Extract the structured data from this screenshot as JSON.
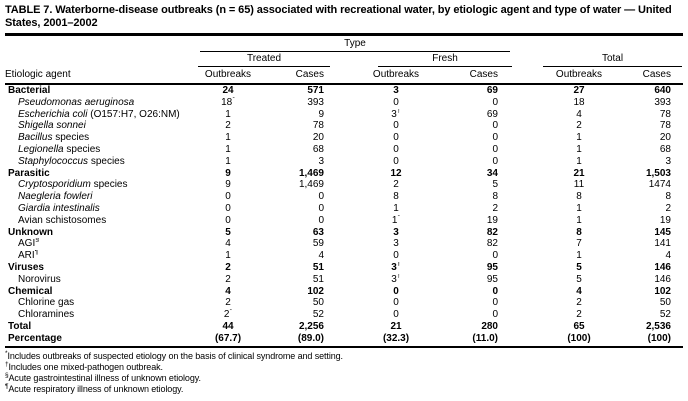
{
  "title": "TABLE 7. Waterborne-disease outbreaks (n = 65) associated with recreational water, by etiologic agent and type of water — United States, 2001–2002",
  "table": {
    "group_header": "Type",
    "subgroups": [
      "Treated",
      "Fresh",
      "Total"
    ],
    "agent_header": "Etiologic agent",
    "col_headers": [
      "Outbreaks",
      "Cases"
    ],
    "rows": [
      {
        "label": [
          {
            "t": "Bacterial"
          }
        ],
        "bold": true,
        "indent": false,
        "cells": [
          "24",
          "571",
          "3",
          "69",
          "27",
          "640"
        ]
      },
      {
        "label": [
          {
            "t": "Pseudomonas aeruginosa",
            "i": true
          }
        ],
        "bold": false,
        "indent": true,
        "cells": [
          "18*",
          "393",
          "0",
          "0",
          "18",
          "393"
        ]
      },
      {
        "label": [
          {
            "t": "Escherichia coli",
            "i": true
          },
          {
            "t": " (O157:H7, O26:NM)"
          }
        ],
        "bold": false,
        "indent": true,
        "cells": [
          "1",
          "9",
          "3†",
          "69",
          "4",
          "78"
        ]
      },
      {
        "label": [
          {
            "t": "Shigella sonnei",
            "i": true
          }
        ],
        "bold": false,
        "indent": true,
        "cells": [
          "2",
          "78",
          "0",
          "0",
          "2",
          "78"
        ]
      },
      {
        "label": [
          {
            "t": "Bacillus",
            "i": true
          },
          {
            "t": " species"
          }
        ],
        "bold": false,
        "indent": true,
        "cells": [
          "1",
          "20",
          "0",
          "0",
          "1",
          "20"
        ]
      },
      {
        "label": [
          {
            "t": "Legionella",
            "i": true
          },
          {
            "t": " species"
          }
        ],
        "bold": false,
        "indent": true,
        "cells": [
          "1",
          "68",
          "0",
          "0",
          "1",
          "68"
        ]
      },
      {
        "label": [
          {
            "t": "Staphylococcus",
            "i": true
          },
          {
            "t": " species"
          }
        ],
        "bold": false,
        "indent": true,
        "cells": [
          "1",
          "3",
          "0",
          "0",
          "1",
          "3"
        ]
      },
      {
        "label": [
          {
            "t": "Parasitic"
          }
        ],
        "bold": true,
        "indent": false,
        "cells": [
          "9",
          "1,469",
          "12",
          "34",
          "21",
          "1,503"
        ]
      },
      {
        "label": [
          {
            "t": "Cryptosporidium",
            "i": true
          },
          {
            "t": " species"
          }
        ],
        "bold": false,
        "indent": true,
        "cells": [
          "9",
          "1,469",
          "2",
          "5",
          "11",
          "1474"
        ]
      },
      {
        "label": [
          {
            "t": "Naegleria fowleri",
            "i": true
          }
        ],
        "bold": false,
        "indent": true,
        "cells": [
          "0",
          "0",
          "8",
          "8",
          "8",
          "8"
        ]
      },
      {
        "label": [
          {
            "t": "Giardia intestinalis",
            "i": true
          }
        ],
        "bold": false,
        "indent": true,
        "cells": [
          "0",
          "0",
          "1",
          "2",
          "1",
          "2"
        ]
      },
      {
        "label": [
          {
            "t": "Avian schistosomes"
          }
        ],
        "bold": false,
        "indent": true,
        "cells": [
          "0",
          "0",
          "1*",
          "19",
          "1",
          "19"
        ]
      },
      {
        "label": [
          {
            "t": "Unknown"
          }
        ],
        "bold": true,
        "indent": false,
        "cells": [
          "5",
          "63",
          "3",
          "82",
          "8",
          "145"
        ]
      },
      {
        "label": [
          {
            "t": "AGI"
          }
        ],
        "sup": "§",
        "bold": false,
        "indent": true,
        "cells": [
          "4",
          "59",
          "3",
          "82",
          "7",
          "141"
        ]
      },
      {
        "label": [
          {
            "t": "ARI"
          }
        ],
        "sup": "¶",
        "bold": false,
        "indent": true,
        "cells": [
          "1",
          "4",
          "0",
          "0",
          "1",
          "4"
        ]
      },
      {
        "label": [
          {
            "t": "Viruses"
          }
        ],
        "bold": true,
        "indent": false,
        "cells": [
          "2",
          "51",
          "3†",
          "95",
          "5",
          "146"
        ]
      },
      {
        "label": [
          {
            "t": "Norovirus"
          }
        ],
        "bold": false,
        "indent": true,
        "cells": [
          "2",
          "51",
          "3†",
          "95",
          "5",
          "146"
        ]
      },
      {
        "label": [
          {
            "t": "Chemical"
          }
        ],
        "bold": true,
        "indent": false,
        "cells": [
          "4",
          "102",
          "0",
          "0",
          "4",
          "102"
        ]
      },
      {
        "label": [
          {
            "t": "Chlorine gas"
          }
        ],
        "bold": false,
        "indent": true,
        "cells": [
          "2",
          "50",
          "0",
          "0",
          "2",
          "50"
        ]
      },
      {
        "label": [
          {
            "t": "Chloramines"
          }
        ],
        "bold": false,
        "indent": true,
        "cells": [
          "2*",
          "52",
          "0",
          "0",
          "2",
          "52"
        ]
      },
      {
        "label": [
          {
            "t": "Total"
          }
        ],
        "bold": true,
        "indent": false,
        "cells": [
          "44",
          "2,256",
          "21",
          "280",
          "65",
          "2,536"
        ]
      },
      {
        "label": [
          {
            "t": "Percentage"
          }
        ],
        "bold": true,
        "indent": false,
        "cells": [
          "(67.7)",
          "(89.0)",
          "(32.3)",
          "(11.0)",
          "(100)",
          "(100)"
        ]
      }
    ]
  },
  "footnotes": [
    {
      "marker": "*",
      "text": "Includes outbreaks of suspected etiology on the basis of clinical syndrome and setting."
    },
    {
      "marker": "†",
      "text": "Includes one mixed-pathogen outbreak."
    },
    {
      "marker": "§",
      "text": "Acute gastrointestinal illness of unknown etiology."
    },
    {
      "marker": "¶",
      "text": "Acute respiratory illness of unknown etiology."
    }
  ]
}
